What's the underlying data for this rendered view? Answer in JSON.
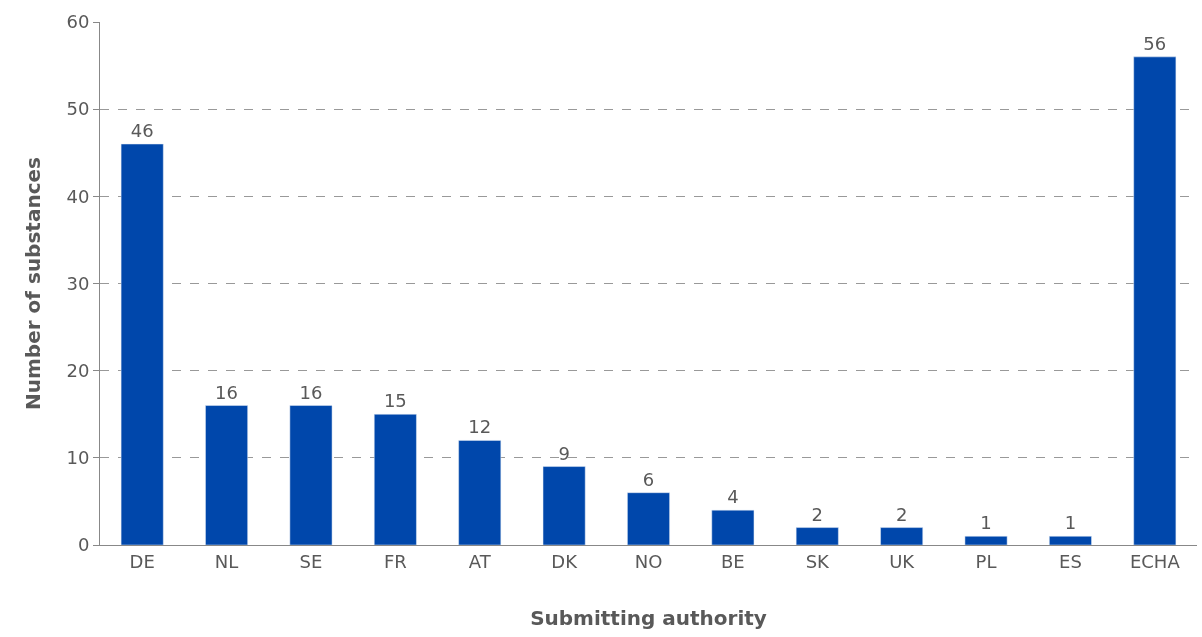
{
  "chart_data": {
    "type": "bar",
    "xlabel": "Submitting authority",
    "ylabel": "Number of substances",
    "categories": [
      "DE",
      "NL",
      "SE",
      "FR",
      "AT",
      "DK",
      "NO",
      "BE",
      "SK",
      "UK",
      "PL",
      "ES",
      "ECHA"
    ],
    "values": [
      46,
      16,
      16,
      15,
      12,
      9,
      6,
      4,
      2,
      2,
      1,
      1,
      56
    ],
    "color": "#0047ab",
    "ylim": [
      0,
      60
    ],
    "yticks": [
      0,
      10,
      20,
      30,
      40,
      50,
      60
    ],
    "grid": "y",
    "data_labels": true
  }
}
